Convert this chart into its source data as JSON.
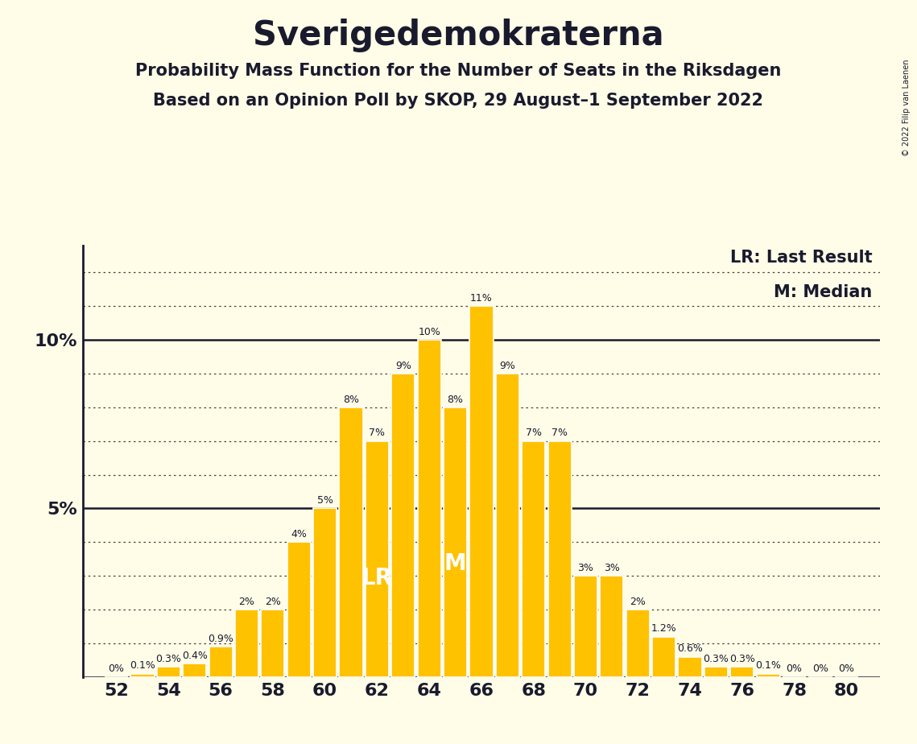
{
  "title": "Sverigedemokraterna",
  "subtitle1": "Probability Mass Function for the Number of Seats in the Riksdagen",
  "subtitle2": "Based on an Opinion Poll by SKOP, 29 August–1 September 2022",
  "copyright": "© 2022 Filip van Laenen",
  "seats": [
    52,
    53,
    54,
    55,
    56,
    57,
    58,
    59,
    60,
    61,
    62,
    63,
    64,
    65,
    66,
    67,
    68,
    69,
    70,
    71,
    72,
    73,
    74,
    75,
    76,
    77,
    78,
    79,
    80
  ],
  "probabilities": [
    0.0,
    0.1,
    0.3,
    0.4,
    0.9,
    2.0,
    2.0,
    4.0,
    5.0,
    8.0,
    7.0,
    9.0,
    10.0,
    8.0,
    11.0,
    9.0,
    7.0,
    7.0,
    3.0,
    3.0,
    2.0,
    1.2,
    0.6,
    0.3,
    0.3,
    0.1,
    0.0,
    0.0,
    0.0
  ],
  "bar_labels": [
    "0%",
    "0.1%",
    "0.3%",
    "0.4%",
    "0.9%",
    "2%",
    "2%",
    "4%",
    "5%",
    "8%",
    "7%",
    "9%",
    "10%",
    "8%",
    "11%",
    "9%",
    "7%",
    "7%",
    "3%",
    "3%",
    "2%",
    "1.2%",
    "0.6%",
    "0.3%",
    "0.3%",
    "0.1%",
    "0%",
    "0%",
    "0%"
  ],
  "bar_color": "#FFC200",
  "background_color": "#FFFDE7",
  "last_result_seat": 62,
  "median_seat": 65,
  "lr_label": "LR",
  "m_label": "M",
  "legend_lr": "LR: Last Result",
  "legend_m": "M: Median",
  "title_fontsize": 30,
  "subtitle_fontsize": 15,
  "tick_fontsize": 16,
  "label_fontsize": 9
}
